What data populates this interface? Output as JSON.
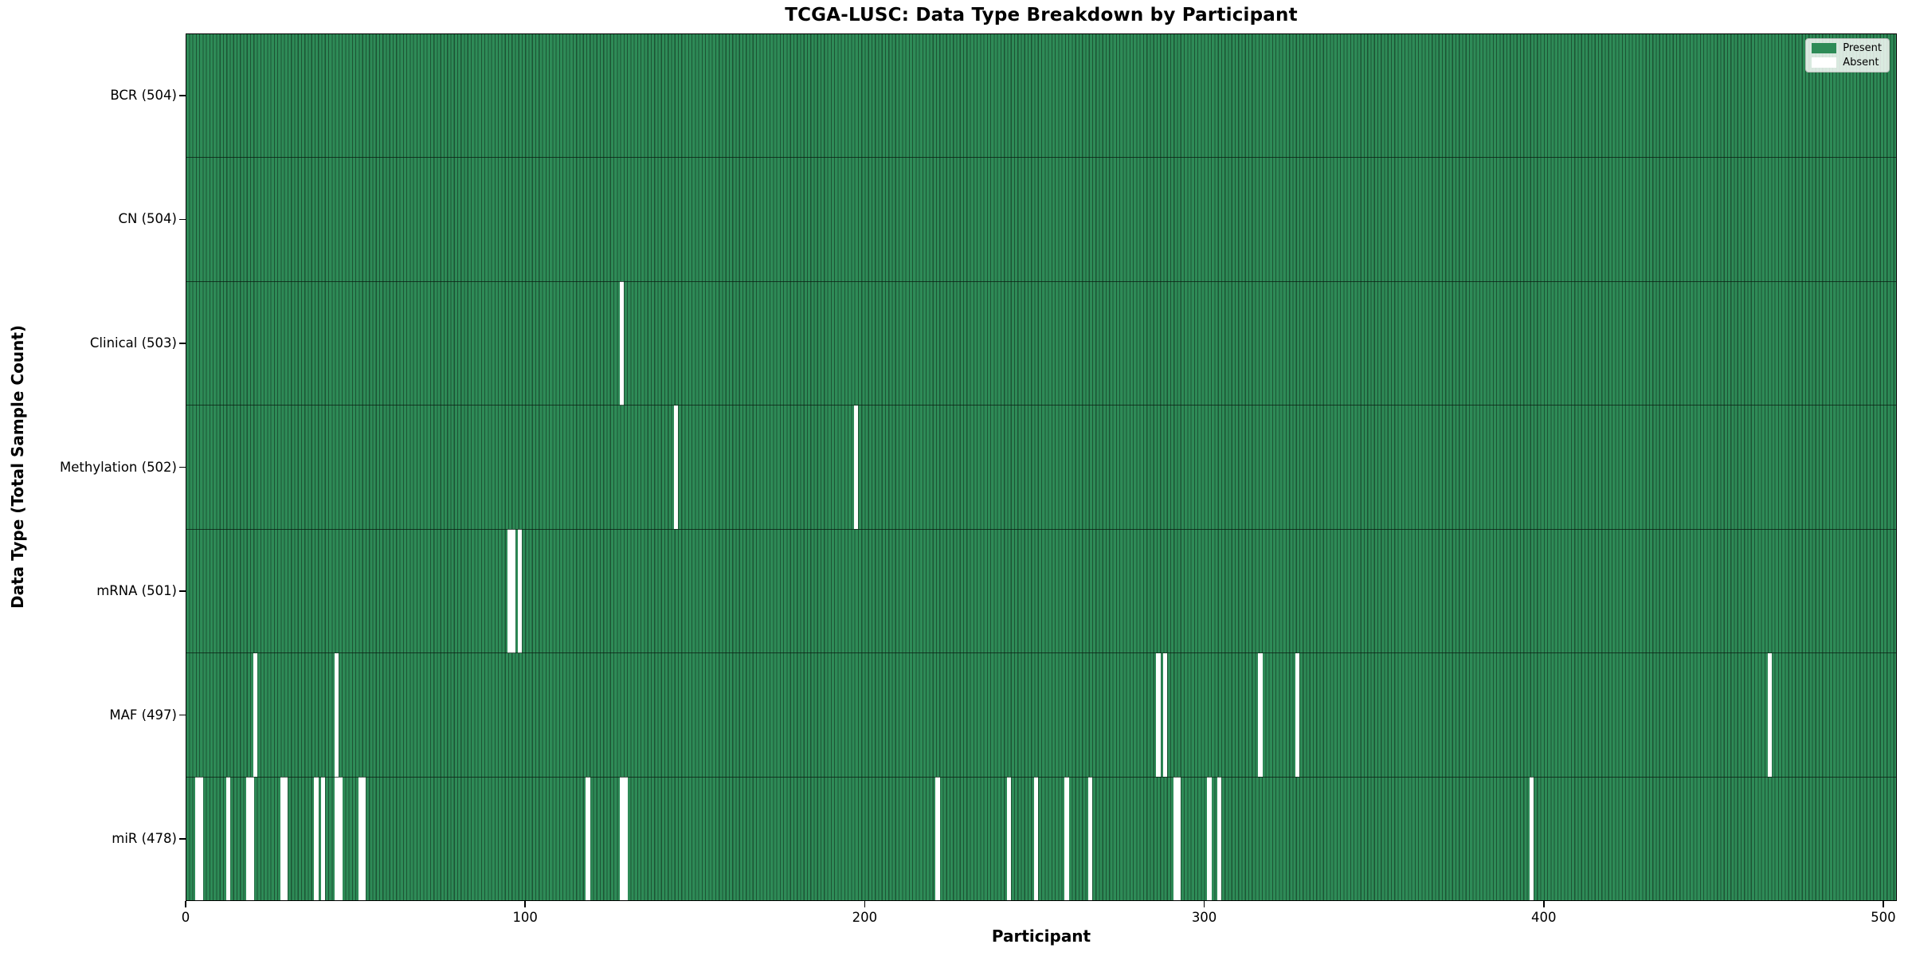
{
  "title": "TCGA-LUSC: Data Type Breakdown by Participant",
  "xlabel": "Participant",
  "ylabel": "Data Type (Total Sample Count)",
  "legend": {
    "present_label": "Present",
    "absent_label": "Absent"
  },
  "colors": {
    "present_fill": "#2e8b57",
    "bar_edge": "#1c5434",
    "absent_fill": "#ffffff",
    "plot_border": "#000000",
    "legend_border": "#b9bdb9"
  },
  "chart_data": {
    "type": "heatmap",
    "title": "TCGA-LUSC: Data Type Breakdown by Participant",
    "xlabel": "Participant",
    "ylabel": "Data Type (Total Sample Count)",
    "legend_entries": [
      "Present",
      "Absent"
    ],
    "legend_position": "upper right",
    "x_ticks": [
      0,
      100,
      200,
      300,
      400,
      500
    ],
    "x_range": [
      0,
      504
    ],
    "total_participants": 504,
    "rows": [
      {
        "label": "BCR (504)",
        "data_type": "BCR",
        "present_count": 504,
        "absent_participants": []
      },
      {
        "label": "CN (504)",
        "data_type": "CN",
        "present_count": 504,
        "absent_participants": []
      },
      {
        "label": "Clinical (503)",
        "data_type": "Clinical",
        "present_count": 503,
        "absent_participants": [
          128
        ]
      },
      {
        "label": "Methylation (502)",
        "data_type": "Methylation",
        "present_count": 502,
        "absent_participants": [
          144,
          197
        ]
      },
      {
        "label": "mRNA (501)",
        "data_type": "mRNA",
        "present_count": 501,
        "absent_participants": [
          95,
          96,
          98
        ]
      },
      {
        "label": "MAF (497)",
        "data_type": "MAF",
        "present_count": 497,
        "absent_participants": [
          20,
          44,
          286,
          288,
          316,
          327,
          466
        ]
      },
      {
        "label": "miR (478)",
        "data_type": "miR",
        "present_count": 478,
        "absent_participants": [
          3,
          4,
          12,
          18,
          19,
          28,
          29,
          38,
          40,
          44,
          45,
          51,
          52,
          118,
          128,
          129,
          221,
          242,
          250,
          259,
          266,
          291,
          292,
          301,
          304,
          396
        ]
      }
    ]
  }
}
